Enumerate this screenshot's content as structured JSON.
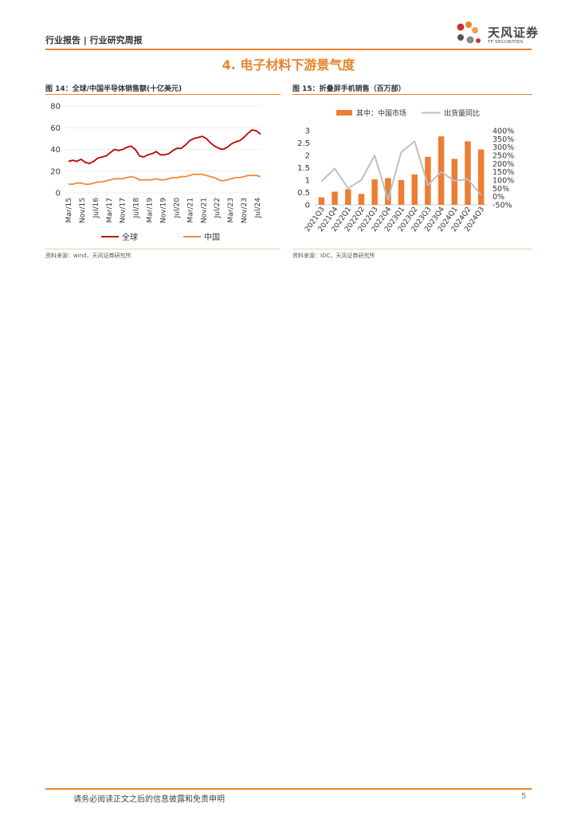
{
  "header": {
    "title": "行业报告 | 行业研究周报",
    "logo_cn": "天风证券",
    "logo_en": "TF SECURITIES"
  },
  "section": {
    "title": "4. 电子材料下游景气度"
  },
  "figure14": {
    "title": "图 14：全球/中国半导体销售额(十亿美元)",
    "source": "资料来源：wind，天风证券研究所",
    "legend": [
      "全球",
      "中国"
    ],
    "colors": {
      "global": "#c00000",
      "china": "#f08a3c"
    }
  },
  "figure15": {
    "title": "图 15：折叠屏手机销售（百万部）",
    "source": "资料来源：IDC，天风证券研究所",
    "legend": [
      "其中：中国市场",
      "出货量同比"
    ],
    "colors": {
      "bar": "#ed7d31",
      "line": "#bfbfbf"
    }
  },
  "footer": {
    "disclaimer": "请务必阅读正文之后的信息披露和免责申明",
    "page": "5"
  },
  "chart_data": [
    {
      "type": "line",
      "title": "全球/中国半导体销售额(十亿美元)",
      "x_ticks": [
        "Mar/15",
        "Nov/15",
        "Jul/16",
        "Mar/17",
        "Nov/17",
        "Jul/18",
        "Mar/19",
        "Nov/19",
        "Jul/20",
        "Mar/21",
        "Nov/21",
        "Jul/22",
        "Mar/23",
        "Nov/23",
        "Jul/24"
      ],
      "ylim": [
        0,
        80
      ],
      "y_ticks": [
        0,
        20,
        40,
        60,
        80
      ],
      "grid": true,
      "legend_position": "bottom",
      "series": [
        {
          "name": "全球",
          "values": [
            29,
            30,
            29,
            31,
            28,
            27,
            29,
            32,
            33,
            34,
            37,
            40,
            39,
            40,
            42,
            43,
            40,
            34,
            33,
            35,
            36,
            38,
            35,
            35,
            36,
            39,
            41,
            41,
            44,
            48,
            50,
            51,
            52,
            50,
            46,
            43,
            41,
            40,
            42,
            45,
            47,
            48,
            51,
            55,
            58,
            57,
            54
          ]
        },
        {
          "name": "中国",
          "values": [
            8,
            8,
            9,
            9,
            8,
            8,
            9,
            10,
            10,
            11,
            12,
            13,
            13,
            13,
            14,
            15,
            14,
            12,
            12,
            12,
            12,
            13,
            12,
            12,
            13,
            14,
            14,
            15,
            15,
            16,
            17,
            17,
            17,
            16,
            15,
            14,
            12,
            11,
            12,
            13,
            14,
            14,
            15,
            16,
            16,
            16,
            15
          ]
        }
      ]
    },
    {
      "type": "bar",
      "title": "折叠屏手机销售（百万部）",
      "categories": [
        "2021Q3",
        "2021Q4",
        "2022Q1",
        "2022Q2",
        "2022Q3",
        "2022Q4",
        "2023Q1",
        "2023Q2",
        "2023Q3",
        "2023Q4",
        "2024Q1",
        "2024Q2",
        "2024Q3"
      ],
      "ylim": [
        0,
        3
      ],
      "y_ticks": [
        "0",
        "0.5",
        "1",
        "1.5",
        "2",
        "2.5",
        "3"
      ],
      "y2lim": [
        -50,
        400
      ],
      "y2_ticks": [
        "-50%",
        "0%",
        "50%",
        "100%",
        "150%",
        "200%",
        "250%",
        "300%",
        "350%",
        "400%"
      ],
      "legend_position": "top",
      "series": [
        {
          "name": "其中：中国市场",
          "kind": "bar",
          "axis": "left",
          "values": [
            0.3,
            0.53,
            0.63,
            0.44,
            1.03,
            1.08,
            1.0,
            1.23,
            1.94,
            2.77,
            1.86,
            2.57,
            2.24
          ]
        },
        {
          "name": "出货量同比",
          "kind": "line",
          "axis": "right",
          "values": [
            92,
            170,
            50,
            100,
            250,
            -20,
            270,
            335,
            70,
            150,
            95,
            105,
            10
          ]
        }
      ]
    }
  ]
}
